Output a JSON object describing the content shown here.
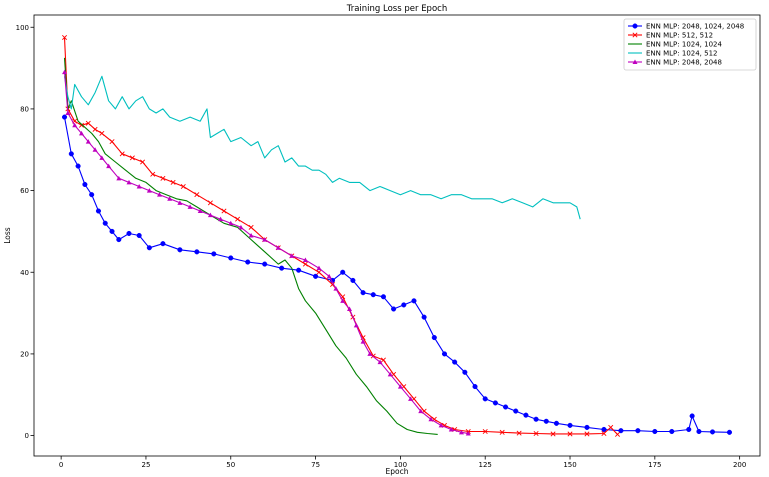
{
  "chart_data": {
    "type": "line",
    "title": "Training Loss per Epoch",
    "xlabel": "Epoch",
    "ylabel": "Loss",
    "xlim": [
      -8,
      206
    ],
    "ylim": [
      -5,
      103
    ],
    "xticks": [
      0,
      25,
      50,
      75,
      100,
      125,
      150,
      175,
      200
    ],
    "yticks": [
      0,
      20,
      40,
      60,
      80,
      100
    ],
    "xtick_labels": [
      "0",
      "25",
      "50",
      "75",
      "100",
      "125",
      "150",
      "175",
      "200"
    ],
    "ytick_labels": [
      "0",
      "20",
      "40",
      "60",
      "80",
      "100"
    ],
    "legend_position": "top-right",
    "series": [
      {
        "name": "ENN MLP: 2048, 1024, 2048",
        "color": "#0000ff",
        "marker": "circle",
        "points": [
          [
            1,
            78
          ],
          [
            3,
            69
          ],
          [
            5,
            66
          ],
          [
            7,
            61.5
          ],
          [
            9,
            59
          ],
          [
            11,
            55
          ],
          [
            13,
            52
          ],
          [
            15,
            50
          ],
          [
            17,
            48
          ],
          [
            20,
            49.5
          ],
          [
            23,
            49
          ],
          [
            26,
            46
          ],
          [
            30,
            47
          ],
          [
            35,
            45.5
          ],
          [
            40,
            45
          ],
          [
            45,
            44.5
          ],
          [
            50,
            43.5
          ],
          [
            55,
            42.5
          ],
          [
            60,
            42
          ],
          [
            65,
            41
          ],
          [
            70,
            40.5
          ],
          [
            75,
            39
          ],
          [
            80,
            38
          ],
          [
            83,
            40
          ],
          [
            86,
            38
          ],
          [
            89,
            35
          ],
          [
            92,
            34.5
          ],
          [
            95,
            34
          ],
          [
            98,
            31
          ],
          [
            101,
            32
          ],
          [
            104,
            33
          ],
          [
            107,
            29
          ],
          [
            110,
            24
          ],
          [
            113,
            20
          ],
          [
            116,
            18
          ],
          [
            119,
            15.5
          ],
          [
            122,
            12
          ],
          [
            125,
            9
          ],
          [
            128,
            8
          ],
          [
            131,
            7
          ],
          [
            134,
            6
          ],
          [
            137,
            5
          ],
          [
            140,
            4
          ],
          [
            143,
            3.5
          ],
          [
            146,
            3
          ],
          [
            150,
            2.5
          ],
          [
            155,
            2
          ],
          [
            160,
            1.5
          ],
          [
            165,
            1.2
          ],
          [
            170,
            1.2
          ],
          [
            175,
            1
          ],
          [
            180,
            1
          ],
          [
            185,
            1.5
          ],
          [
            186,
            4.8
          ],
          [
            188,
            1
          ],
          [
            192,
            0.9
          ],
          [
            197,
            0.8
          ]
        ]
      },
      {
        "name": "ENN MLP: 512, 512",
        "color": "#ff0000",
        "marker": "x",
        "points": [
          [
            1,
            97.5
          ],
          [
            2,
            80
          ],
          [
            4,
            77
          ],
          [
            6,
            76
          ],
          [
            8,
            76.5
          ],
          [
            10,
            75
          ],
          [
            12,
            74
          ],
          [
            15,
            72
          ],
          [
            18,
            69
          ],
          [
            21,
            68
          ],
          [
            24,
            67
          ],
          [
            27,
            64
          ],
          [
            30,
            63
          ],
          [
            33,
            62
          ],
          [
            36,
            61
          ],
          [
            40,
            59
          ],
          [
            44,
            57
          ],
          [
            48,
            55
          ],
          [
            52,
            53
          ],
          [
            56,
            51
          ],
          [
            60,
            48
          ],
          [
            64,
            46
          ],
          [
            68,
            44
          ],
          [
            72,
            42
          ],
          [
            76,
            40
          ],
          [
            80,
            37
          ],
          [
            83,
            34
          ],
          [
            86,
            29
          ],
          [
            89,
            24
          ],
          [
            92,
            19.5
          ],
          [
            95,
            18.5
          ],
          [
            98,
            15
          ],
          [
            101,
            12
          ],
          [
            104,
            9
          ],
          [
            107,
            6
          ],
          [
            110,
            4
          ],
          [
            113,
            2.5
          ],
          [
            116,
            1.5
          ],
          [
            120,
            1
          ],
          [
            125,
            1
          ],
          [
            130,
            0.8
          ],
          [
            135,
            0.6
          ],
          [
            140,
            0.5
          ],
          [
            145,
            0.4
          ],
          [
            150,
            0.4
          ],
          [
            155,
            0.4
          ],
          [
            160,
            0.5
          ],
          [
            162,
            2
          ],
          [
            164,
            0.3
          ]
        ]
      },
      {
        "name": "ENN MLP: 1024, 1024",
        "color": "#008000",
        "marker": "none",
        "points": [
          [
            1,
            92.5
          ],
          [
            2,
            80
          ],
          [
            3,
            82
          ],
          [
            5,
            77
          ],
          [
            7,
            75.5
          ],
          [
            9,
            74
          ],
          [
            11,
            72
          ],
          [
            13,
            69
          ],
          [
            16,
            67
          ],
          [
            19,
            65
          ],
          [
            22,
            63
          ],
          [
            25,
            62
          ],
          [
            28,
            60
          ],
          [
            31,
            59
          ],
          [
            34,
            58
          ],
          [
            37,
            57.5
          ],
          [
            40,
            56
          ],
          [
            44,
            54
          ],
          [
            48,
            52
          ],
          [
            52,
            51
          ],
          [
            56,
            48
          ],
          [
            60,
            45
          ],
          [
            64,
            42
          ],
          [
            66,
            43
          ],
          [
            68,
            41
          ],
          [
            70,
            36
          ],
          [
            72,
            33
          ],
          [
            75,
            30
          ],
          [
            78,
            26
          ],
          [
            81,
            22
          ],
          [
            84,
            19
          ],
          [
            87,
            15
          ],
          [
            90,
            12
          ],
          [
            93,
            8.5
          ],
          [
            96,
            6
          ],
          [
            99,
            3
          ],
          [
            102,
            1.5
          ],
          [
            105,
            0.8
          ],
          [
            108,
            0.5
          ],
          [
            111,
            0.3
          ]
        ]
      },
      {
        "name": "ENN MLP: 1024, 512",
        "color": "#00bfbf",
        "marker": "none",
        "points": [
          [
            1,
            88
          ],
          [
            2,
            83
          ],
          [
            3,
            80
          ],
          [
            4,
            86
          ],
          [
            6,
            83
          ],
          [
            8,
            81
          ],
          [
            10,
            84
          ],
          [
            12,
            88
          ],
          [
            14,
            82
          ],
          [
            16,
            80
          ],
          [
            18,
            83
          ],
          [
            20,
            80
          ],
          [
            22,
            82
          ],
          [
            24,
            83
          ],
          [
            26,
            80
          ],
          [
            28,
            79
          ],
          [
            30,
            80
          ],
          [
            32,
            78
          ],
          [
            35,
            77
          ],
          [
            38,
            78
          ],
          [
            41,
            77
          ],
          [
            43,
            80
          ],
          [
            44,
            73
          ],
          [
            46,
            74
          ],
          [
            48,
            75
          ],
          [
            50,
            72
          ],
          [
            53,
            73
          ],
          [
            56,
            71
          ],
          [
            58,
            72
          ],
          [
            60,
            68
          ],
          [
            62,
            70
          ],
          [
            64,
            71
          ],
          [
            66,
            67
          ],
          [
            68,
            68
          ],
          [
            70,
            66
          ],
          [
            72,
            66
          ],
          [
            74,
            65
          ],
          [
            76,
            65
          ],
          [
            78,
            64
          ],
          [
            80,
            62
          ],
          [
            82,
            63
          ],
          [
            85,
            62
          ],
          [
            88,
            62
          ],
          [
            91,
            60
          ],
          [
            94,
            61
          ],
          [
            97,
            60
          ],
          [
            100,
            59
          ],
          [
            103,
            60
          ],
          [
            106,
            59
          ],
          [
            109,
            59
          ],
          [
            112,
            58
          ],
          [
            115,
            59
          ],
          [
            118,
            59
          ],
          [
            121,
            58
          ],
          [
            124,
            58
          ],
          [
            127,
            58
          ],
          [
            130,
            57
          ],
          [
            133,
            58
          ],
          [
            136,
            57
          ],
          [
            139,
            56
          ],
          [
            142,
            58
          ],
          [
            145,
            57
          ],
          [
            148,
            57
          ],
          [
            150,
            57
          ],
          [
            152,
            56
          ],
          [
            153,
            53
          ]
        ]
      },
      {
        "name": "ENN MLP: 2048, 2048",
        "color": "#bf00bf",
        "marker": "triangle",
        "points": [
          [
            1,
            89
          ],
          [
            2,
            79
          ],
          [
            4,
            76
          ],
          [
            6,
            74
          ],
          [
            8,
            72
          ],
          [
            10,
            70
          ],
          [
            12,
            68
          ],
          [
            14,
            66
          ],
          [
            17,
            63
          ],
          [
            20,
            62
          ],
          [
            23,
            61
          ],
          [
            26,
            60
          ],
          [
            29,
            59
          ],
          [
            32,
            58
          ],
          [
            35,
            57
          ],
          [
            38,
            56
          ],
          [
            41,
            55
          ],
          [
            44,
            54
          ],
          [
            47,
            53
          ],
          [
            50,
            52
          ],
          [
            53,
            51
          ],
          [
            56,
            49
          ],
          [
            60,
            48
          ],
          [
            64,
            46
          ],
          [
            68,
            44
          ],
          [
            72,
            43
          ],
          [
            76,
            41
          ],
          [
            79,
            39
          ],
          [
            81,
            36
          ],
          [
            83,
            33
          ],
          [
            85,
            31
          ],
          [
            87,
            27
          ],
          [
            89,
            23
          ],
          [
            91,
            20
          ],
          [
            94,
            18
          ],
          [
            97,
            15
          ],
          [
            100,
            12
          ],
          [
            103,
            9
          ],
          [
            106,
            6
          ],
          [
            109,
            4
          ],
          [
            112,
            2.5
          ],
          [
            115,
            1.5
          ],
          [
            118,
            0.8
          ],
          [
            120,
            0.5
          ]
        ]
      }
    ]
  }
}
